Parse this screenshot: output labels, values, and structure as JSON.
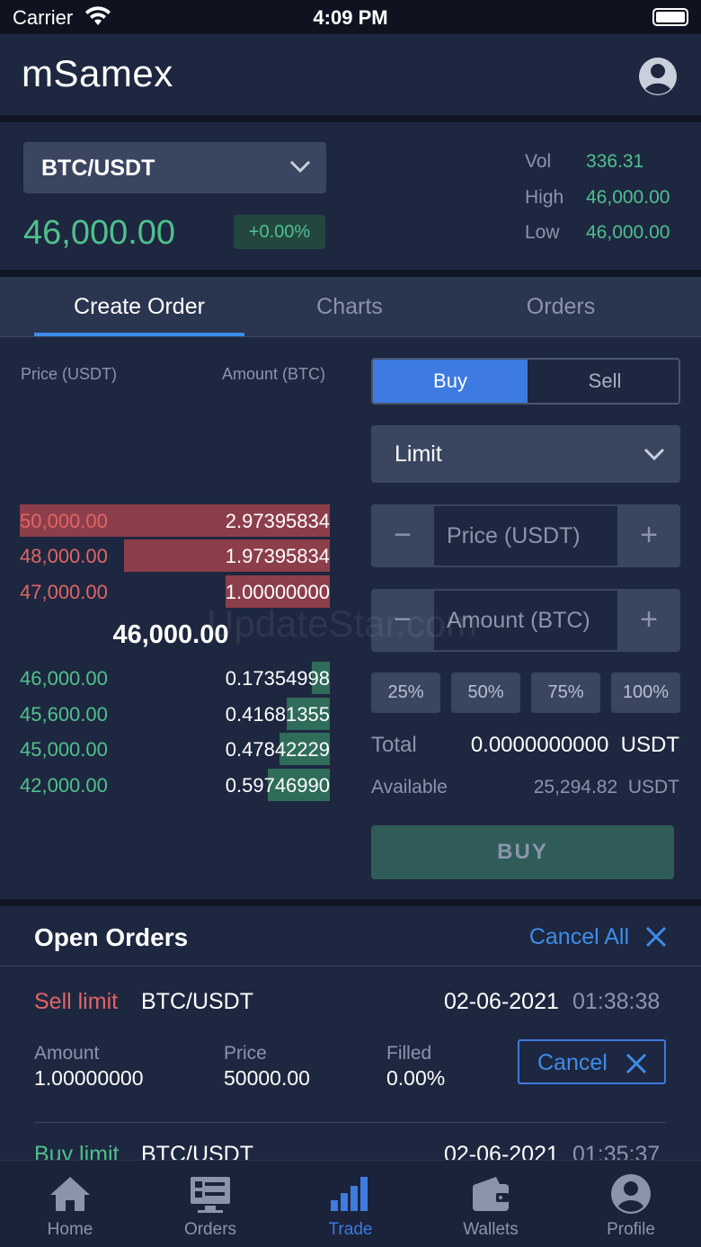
{
  "status_bar": {
    "carrier": "Carrier",
    "time": "4:09 PM",
    "battery_level": 1.0
  },
  "app": {
    "brand": "mSamex",
    "profile_icon": "user-circle-icon"
  },
  "market": {
    "pair": "BTC/USDT",
    "last_price": "46,000.00",
    "change": "+0.00%",
    "stats": [
      {
        "label": "Vol",
        "value": "336.31"
      },
      {
        "label": "High",
        "value": "46,000.00"
      },
      {
        "label": "Low",
        "value": "46,000.00"
      }
    ]
  },
  "tabs": [
    {
      "label": "Create Order",
      "active": true
    },
    {
      "label": "Charts",
      "active": false
    },
    {
      "label": "Orders",
      "active": false
    }
  ],
  "orderbook": {
    "price_header": "Price (USDT)",
    "amount_header": "Amount (BTC)",
    "asks": [
      {
        "price": "50,000.00",
        "amount": "2.97395834",
        "depth": 1.0
      },
      {
        "price": "48,000.00",
        "amount": "1.97395834",
        "depth": 0.665
      },
      {
        "price": "47,000.00",
        "amount": "1.00000000",
        "depth": 0.336
      }
    ],
    "mid_price": "46,000.00",
    "bids": [
      {
        "price": "46,000.00",
        "amount": "0.17354998",
        "depth": 0.058
      },
      {
        "price": "45,600.00",
        "amount": "0.41681355",
        "depth": 0.14
      },
      {
        "price": "45,000.00",
        "amount": "0.47842229",
        "depth": 0.161
      },
      {
        "price": "42,000.00",
        "amount": "0.59746990",
        "depth": 0.201
      }
    ]
  },
  "order_form": {
    "buy_label": "Buy",
    "sell_label": "Sell",
    "selected_side": "Buy",
    "order_type": "Limit",
    "price_placeholder": "Price (USDT)",
    "amount_placeholder": "Amount (BTC)",
    "minus": "−",
    "plus": "+",
    "percents": [
      "25%",
      "50%",
      "75%",
      "100%"
    ],
    "total_label": "Total",
    "total_value": "0.0000000000",
    "total_unit": "USDT",
    "available_label": "Available",
    "available_value": "25,294.82",
    "available_unit": "USDT",
    "submit_label": "BUY"
  },
  "open_orders": {
    "title": "Open Orders",
    "cancel_all": "Cancel All",
    "items": [
      {
        "side": "Sell limit",
        "side_color": "#e06565",
        "pair": "BTC/USDT",
        "date": "02-06-2021",
        "time": "01:38:38",
        "amount_label": "Amount",
        "amount": "1.00000000",
        "price_label": "Price",
        "price": "50000.00",
        "filled_label": "Filled",
        "filled": "0.00%",
        "cancel_label": "Cancel"
      },
      {
        "side": "Buy limit",
        "side_color": "#4fc08d",
        "pair": "BTC/USDT",
        "date": "02-06-2021",
        "time": "01:35:37"
      }
    ]
  },
  "bottom_nav": [
    {
      "label": "Home",
      "icon": "home-icon",
      "active": false
    },
    {
      "label": "Orders",
      "icon": "orders-icon",
      "active": false
    },
    {
      "label": "Trade",
      "icon": "trade-icon",
      "active": true
    },
    {
      "label": "Wallets",
      "icon": "wallet-icon",
      "active": false
    },
    {
      "label": "Profile",
      "icon": "profile-icon",
      "active": false
    }
  ],
  "watermark": "UpdateStar.com",
  "colors": {
    "accent": "#3d7be0",
    "up": "#4fc08d",
    "down": "#e06565",
    "background": "#1e2740"
  }
}
